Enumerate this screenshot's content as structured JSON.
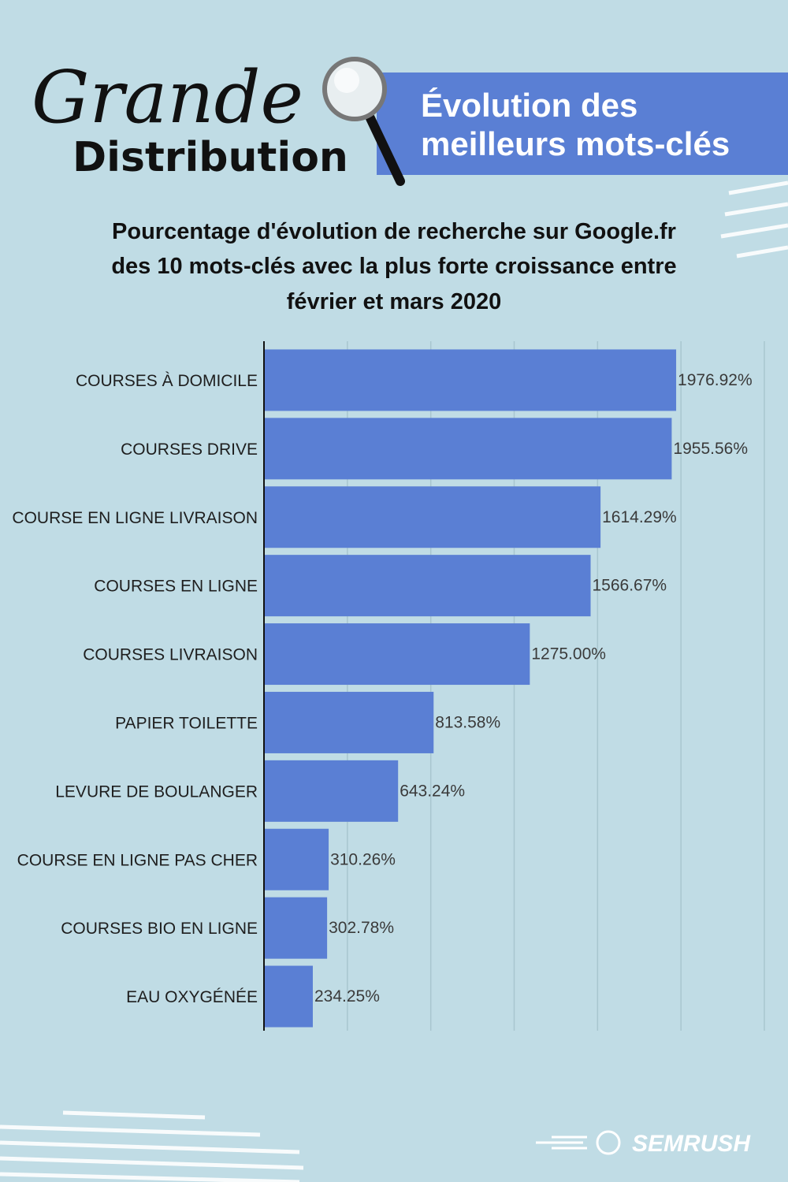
{
  "header": {
    "script_word": "Grande",
    "word": "Distribution",
    "banner": [
      "Évolution des",
      "meilleurs mots-clés"
    ]
  },
  "logo": "SEMRUSH",
  "chart_data": {
    "type": "hbar",
    "title": [
      "Pourcentage d'évolution de recherche sur Google.fr",
      "des 10 mots-clés avec la plus forte croissance entre",
      "février et mars 2020"
    ],
    "categories": [
      "COURSES À DOMICILE",
      "COURSES DRIVE",
      "COURSE EN LIGNE LIVRAISON",
      "COURSES EN LIGNE",
      "COURSES LIVRAISON",
      "PAPIER TOILETTE",
      "LEVURE DE BOULANGER",
      "COURSE EN LIGNE PAS CHER",
      "COURSES BIO EN LIGNE",
      "EAU OXYGÉNÉE"
    ],
    "values": [
      1976.92,
      1955.56,
      1614.29,
      1566.67,
      1275.0,
      813.58,
      643.24,
      310.26,
      302.78,
      234.25
    ],
    "value_labels": [
      "1976.92%",
      "1955.56%",
      "1614.29%",
      "1566.67%",
      "1275.00%",
      "813.58%",
      "643.24%",
      "310.26%",
      "302.78%",
      "234.25%"
    ],
    "color": "#5a7fd4",
    "xlim": [
      0,
      2400
    ],
    "xticks": [
      0,
      400,
      800,
      1200,
      1600,
      2000,
      2400
    ],
    "grid": true
  }
}
